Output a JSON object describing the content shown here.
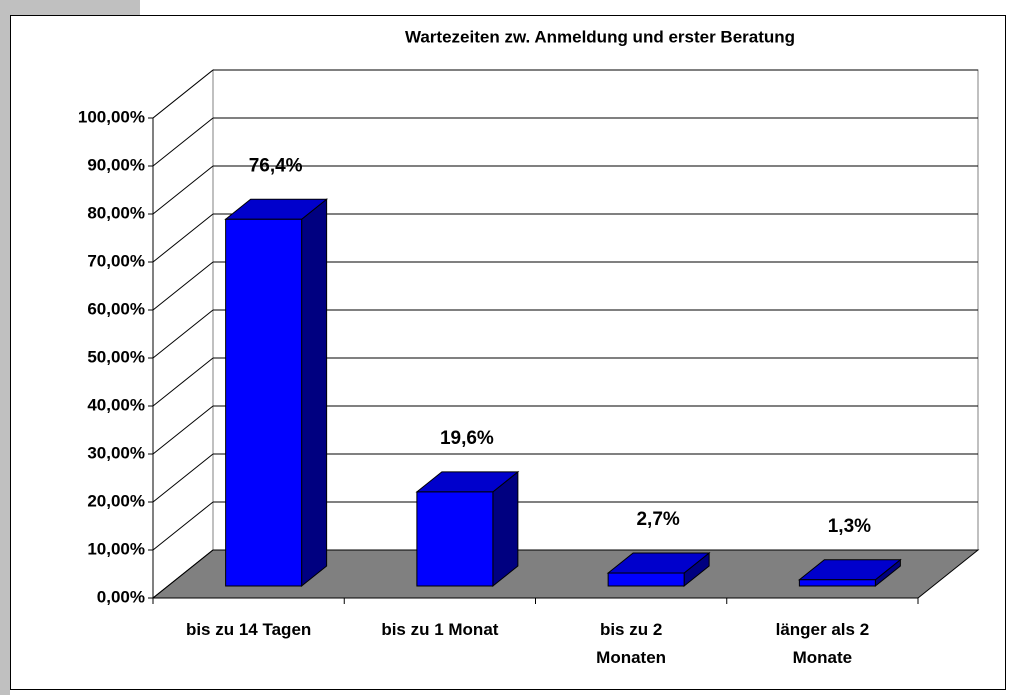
{
  "chart_data": {
    "type": "bar3d",
    "title": "Wartezeiten zw. Anmeldung und erster Beratung",
    "categories": [
      "bis zu 14 Tagen",
      "bis zu 1 Monat",
      "bis zu 2\nMonaten",
      "länger als 2\nMonate"
    ],
    "values": [
      76.4,
      19.6,
      2.7,
      1.3
    ],
    "value_labels": [
      "76,4%",
      "19,6%",
      "2,7%",
      "1,3%"
    ],
    "color": "#0000ff",
    "ylim": [
      0,
      100
    ],
    "yticks": [
      {
        "value": 0,
        "label": "0,00%"
      },
      {
        "value": 10,
        "label": "10,00%"
      },
      {
        "value": 20,
        "label": "20,00%"
      },
      {
        "value": 30,
        "label": "30,00%"
      },
      {
        "value": 40,
        "label": "40,00%"
      },
      {
        "value": 50,
        "label": "50,00%"
      },
      {
        "value": 60,
        "label": "60,00%"
      },
      {
        "value": 70,
        "label": "70,00%"
      },
      {
        "value": 80,
        "label": "80,00%"
      },
      {
        "value": 90,
        "label": "90,00%"
      },
      {
        "value": 100,
        "label": "100,00%"
      }
    ],
    "grid": true
  }
}
